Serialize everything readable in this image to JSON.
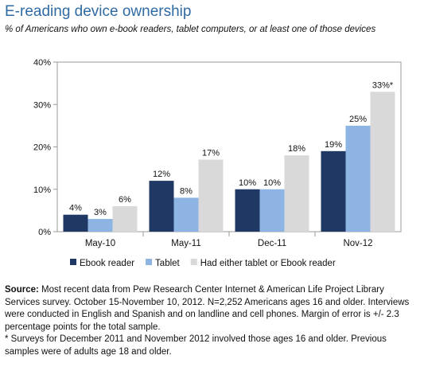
{
  "title": "E-reading device ownership",
  "subtitle": "% of Americans who own e-book readers, tablet computers, or  at least one of those devices",
  "chart_data": {
    "type": "bar",
    "categories": [
      "May-10",
      "May-11",
      "Dec-11",
      "Nov-12"
    ],
    "series": [
      {
        "name": "Ebook reader",
        "color": "#1f3864",
        "values": [
          4,
          12,
          10,
          19
        ],
        "labels": [
          "4%",
          "12%",
          "10%",
          "19%"
        ]
      },
      {
        "name": "Tablet",
        "color": "#8eb4e3",
        "values": [
          3,
          8,
          10,
          25
        ],
        "labels": [
          "3%",
          "8%",
          "10%",
          "25%"
        ]
      },
      {
        "name": "Had either tablet or Ebook reader",
        "color": "#d9d9d9",
        "values": [
          6,
          17,
          18,
          33
        ],
        "labels": [
          "6%",
          "17%",
          "18%",
          "33%*"
        ]
      }
    ],
    "ylim": [
      0,
      40
    ],
    "yticks": [
      0,
      10,
      20,
      30,
      40
    ],
    "ytick_labels": [
      "0%",
      "10%",
      "20%",
      "30%",
      "40%"
    ],
    "legend_position": "bottom",
    "grid": false
  },
  "footnote": {
    "source_label": "Source:",
    "source_text": " Most recent data from Pew Research Center Internet & American Life Project Library Services survey. October 15-November 10, 2012. N=2,252 Americans ages 16 and older. Interviews were conducted in English and Spanish and on landline and cell phones. Margin of error is +/- 2.3 percentage points for the total sample.",
    "note": "* Surveys for December 2011 and November 2012 involved those ages 16 and older. Previous samples were of adults age 18 and older."
  }
}
